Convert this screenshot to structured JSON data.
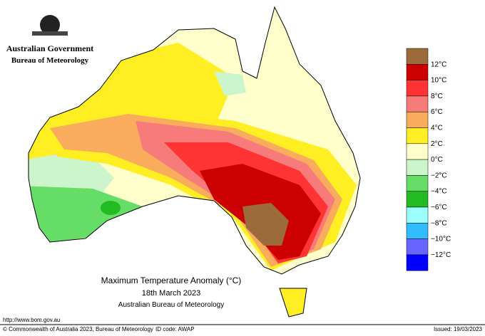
{
  "header": {
    "agency": "Australian Government",
    "bureau": "Bureau of Meteorology"
  },
  "map": {
    "title": "Maximum Temperature Anomaly (°C)",
    "date": "18th March 2023",
    "source": "Australian Bureau of Meteorology"
  },
  "legend": {
    "labels": [
      "12°C",
      "10°C",
      "8°C",
      "6°C",
      "4°C",
      "2°C",
      "0°C",
      "−2°C",
      "−4°C",
      "−6°C",
      "−8°C",
      "−10°C",
      "−12°C"
    ],
    "colors": [
      "#9c6b3c",
      "#cc0000",
      "#ff3333",
      "#f77b7b",
      "#f9ac5c",
      "#ffee22",
      "#ffffcc",
      "#ccf5cc",
      "#66dd66",
      "#22bb22",
      "#99ffff",
      "#33bbff",
      "#6666ff",
      "#0000ff"
    ]
  },
  "footer": {
    "url": "http://www.bom.gov.au",
    "copyright": "© Commonwealth of Australia 2023, Bureau of Meteorology",
    "id": "ID code: AWAP",
    "issued": "Issued: 19/03/2023"
  }
}
